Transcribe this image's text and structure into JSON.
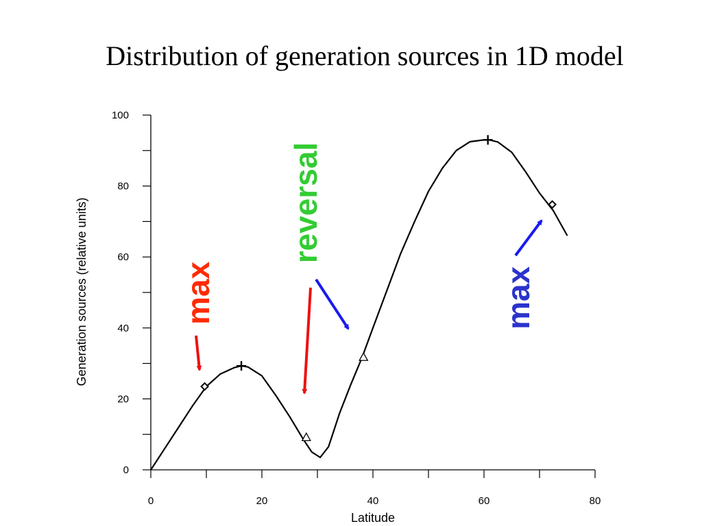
{
  "title": "Distribution of generation sources in 1D model",
  "chart_data": {
    "type": "line",
    "title": "Distribution of generation sources in 1D model",
    "xlabel": "Latitude",
    "ylabel": "Generation sources (relative units)",
    "xlim": [
      0,
      80
    ],
    "ylim": [
      0,
      100
    ],
    "x_ticks": [
      0,
      20,
      40,
      60,
      80
    ],
    "y_ticks": [
      0,
      20,
      40,
      60,
      80,
      100
    ],
    "grid": false,
    "series": [
      {
        "x": [
          0,
          2.5,
          5,
          7.5,
          10,
          12.5,
          15,
          16.3,
          17.5,
          20,
          22.5,
          25,
          27.5,
          29,
          30.5,
          32,
          34,
          36,
          38,
          40,
          42.5,
          45,
          47.5,
          50,
          52.5,
          55,
          57.5,
          60,
          61,
          62.5,
          65,
          67.5,
          70,
          72.5,
          75
        ],
        "y": [
          0,
          6,
          12,
          18,
          23.5,
          27,
          28.8,
          29.3,
          29,
          26.5,
          21,
          15,
          8.5,
          5,
          3.5,
          6.5,
          16,
          24,
          31.5,
          40,
          50.5,
          61,
          70,
          78.5,
          85,
          90,
          92.5,
          93,
          93,
          92.4,
          89.5,
          84,
          78,
          73,
          66
        ]
      }
    ],
    "markers": [
      {
        "shape": "plus",
        "x": 16.3,
        "y": 29.3
      },
      {
        "shape": "plus",
        "x": 60.7,
        "y": 93
      },
      {
        "shape": "diamond",
        "x": 9.7,
        "y": 23.5
      },
      {
        "shape": "diamond",
        "x": 72.3,
        "y": 74.8
      },
      {
        "shape": "triangle",
        "x": 28,
        "y": 9.2
      },
      {
        "shape": "triangle",
        "x": 38.3,
        "y": 31.8
      }
    ],
    "annotations": [
      {
        "text": "max",
        "color": "#ff2a00"
      },
      {
        "text": "reversal",
        "color": "#33cc33"
      },
      {
        "text": "max",
        "color": "#2b33cc"
      }
    ]
  }
}
